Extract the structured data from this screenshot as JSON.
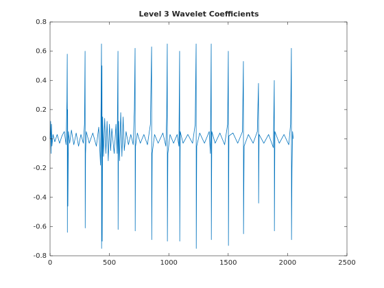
{
  "chart_data": {
    "type": "line",
    "title": "Level 3 Wavelet Coefficients",
    "x": [
      0,
      5,
      8,
      12,
      16,
      25,
      40,
      60,
      80,
      100,
      120,
      135,
      142,
      145,
      146,
      148,
      150,
      155,
      165,
      180,
      200,
      220,
      240,
      260,
      280,
      290,
      295,
      296,
      299,
      305,
      330,
      360,
      390,
      410,
      425,
      430,
      433,
      434,
      437,
      439,
      443,
      450,
      460,
      470,
      480,
      490,
      500,
      510,
      520,
      540,
      555,
      565,
      572,
      573,
      577,
      585,
      595,
      605,
      615,
      625,
      640,
      660,
      680,
      700,
      710,
      716,
      717,
      720,
      735,
      760,
      790,
      820,
      845,
      855,
      856,
      860,
      880,
      910,
      950,
      975,
      982,
      987,
      988,
      992,
      1010,
      1040,
      1070,
      1085,
      1091,
      1092,
      1096,
      1120,
      1160,
      1200,
      1222,
      1230,
      1231,
      1235,
      1260,
      1300,
      1340,
      1350,
      1357,
      1358,
      1362,
      1390,
      1430,
      1470,
      1495,
      1501,
      1502,
      1506,
      1540,
      1580,
      1620,
      1628,
      1629,
      1634,
      1670,
      1710,
      1745,
      1755,
      1756,
      1760,
      1800,
      1840,
      1880,
      1888,
      1889,
      1893,
      1930,
      1970,
      2010,
      2025,
      2032,
      2033,
      2037,
      2042,
      2048
    ],
    "series": [
      {
        "color": "#0072bd",
        "values": [
          0,
          0.12,
          -0.1,
          0.1,
          -0.05,
          0.03,
          -0.02,
          0.03,
          -0.03,
          0.02,
          0.05,
          -0.04,
          0.26,
          0.58,
          -0.64,
          0.2,
          -0.46,
          0.05,
          -0.03,
          0.06,
          -0.04,
          0.04,
          -0.05,
          0.03,
          -0.03,
          0.1,
          0.6,
          -0.61,
          -0.1,
          0.05,
          -0.03,
          0.04,
          -0.05,
          0.08,
          -0.18,
          0.3,
          0.65,
          -0.75,
          0.5,
          -0.7,
          0.15,
          -0.12,
          0.14,
          -0.1,
          0.12,
          -0.15,
          0.1,
          -0.08,
          0.07,
          -0.1,
          0.1,
          -0.1,
          0.6,
          -0.62,
          0.12,
          -0.15,
          0.18,
          -0.12,
          0.15,
          -0.08,
          0.05,
          -0.04,
          0.03,
          -0.04,
          0.2,
          0.62,
          -0.63,
          -0.05,
          0.04,
          -0.03,
          0.03,
          -0.04,
          0.1,
          0.63,
          -0.69,
          -0.1,
          0.03,
          -0.03,
          0.04,
          -0.05,
          0.15,
          0.65,
          -0.7,
          -0.1,
          0.03,
          -0.03,
          0.03,
          -0.05,
          0.6,
          -0.7,
          0.05,
          -0.03,
          0.03,
          -0.03,
          0.1,
          0.65,
          -0.75,
          -0.05,
          0.04,
          -0.03,
          0.05,
          -0.1,
          0.65,
          -0.69,
          0.05,
          -0.03,
          0.04,
          -0.04,
          0.1,
          0.6,
          -0.73,
          0.02,
          0.04,
          -0.03,
          0.05,
          0.53,
          -0.65,
          -0.05,
          0.03,
          -0.03,
          0.05,
          0.38,
          -0.44,
          0.03,
          -0.03,
          0.03,
          -0.06,
          0.4,
          -0.63,
          0.05,
          -0.03,
          0.03,
          -0.04,
          0.1,
          0.62,
          -0.69,
          -0.2,
          0.05,
          0
        ]
      }
    ],
    "xlim": [
      0,
      2500
    ],
    "xticks": [
      0,
      500,
      1000,
      1500,
      2000,
      2500
    ],
    "ylim": [
      -0.8,
      0.8
    ],
    "yticks": [
      -0.8,
      -0.6,
      -0.4,
      -0.2,
      0,
      0.2,
      0.4,
      0.6,
      0.8
    ]
  }
}
